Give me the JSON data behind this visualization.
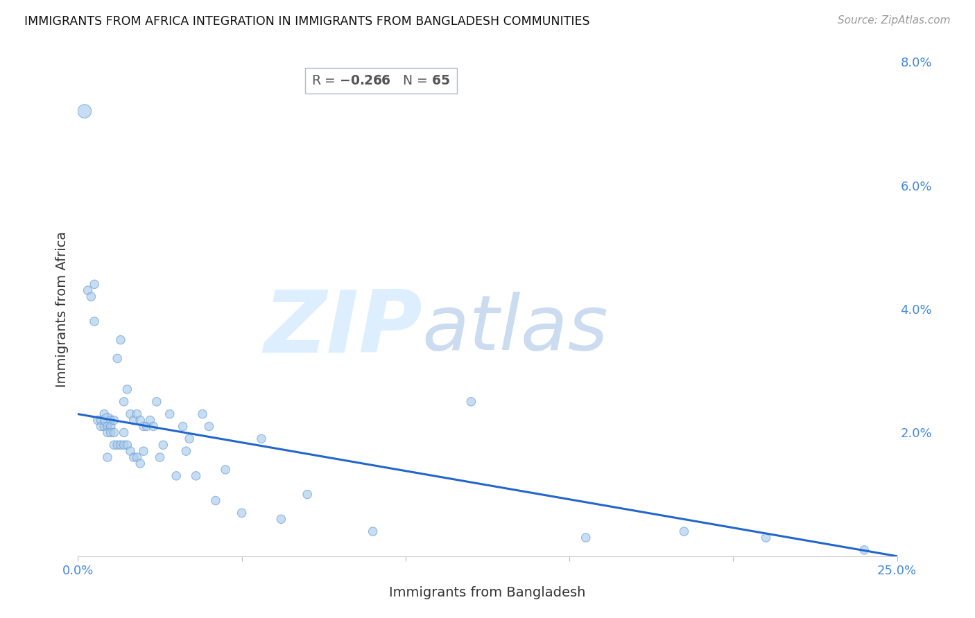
{
  "title": "IMMIGRANTS FROM AFRICA INTEGRATION IN IMMIGRANTS FROM BANGLADESH COMMUNITIES",
  "source": "Source: ZipAtlas.com",
  "xlabel": "Immigrants from Bangladesh",
  "ylabel": "Immigrants from Africa",
  "R": -0.266,
  "N": 65,
  "x_min": 0.0,
  "x_max": 0.25,
  "y_min": 0.0,
  "y_max": 0.08,
  "x_ticks": [
    0.0,
    0.05,
    0.1,
    0.15,
    0.2,
    0.25
  ],
  "x_tick_labels": [
    "0.0%",
    "",
    "",
    "",
    "",
    "25.0%"
  ],
  "y_ticks_right": [
    0.02,
    0.04,
    0.06,
    0.08
  ],
  "y_tick_labels_right": [
    "2.0%",
    "4.0%",
    "6.0%",
    "8.0%"
  ],
  "scatter_color": "#aaccee",
  "scatter_edge_color": "#6699cc",
  "scatter_alpha": 0.65,
  "trend_color": "#2266cc",
  "trend_intercept": 0.023,
  "trend_slope": -0.092,
  "watermark_zip_color": "#ddeeff",
  "watermark_atlas_color": "#cce0f5",
  "title_color": "#111111",
  "source_color": "#999999",
  "axis_label_color": "#333333",
  "tick_label_color": "#4488dd",
  "grid_color": "#cccccc",
  "background_color": "#ffffff",
  "scatter_x": [
    0.002,
    0.003,
    0.004,
    0.005,
    0.005,
    0.006,
    0.007,
    0.007,
    0.008,
    0.008,
    0.009,
    0.009,
    0.009,
    0.009,
    0.01,
    0.01,
    0.01,
    0.011,
    0.011,
    0.011,
    0.012,
    0.012,
    0.013,
    0.013,
    0.014,
    0.014,
    0.014,
    0.015,
    0.015,
    0.016,
    0.016,
    0.017,
    0.017,
    0.018,
    0.018,
    0.019,
    0.019,
    0.02,
    0.02,
    0.021,
    0.022,
    0.023,
    0.024,
    0.025,
    0.026,
    0.028,
    0.03,
    0.032,
    0.033,
    0.034,
    0.036,
    0.038,
    0.04,
    0.042,
    0.045,
    0.05,
    0.056,
    0.062,
    0.07,
    0.09,
    0.12,
    0.155,
    0.185,
    0.21,
    0.24
  ],
  "scatter_y": [
    0.072,
    0.043,
    0.042,
    0.044,
    0.038,
    0.022,
    0.022,
    0.021,
    0.023,
    0.021,
    0.022,
    0.021,
    0.02,
    0.016,
    0.022,
    0.021,
    0.02,
    0.022,
    0.02,
    0.018,
    0.032,
    0.018,
    0.035,
    0.018,
    0.025,
    0.02,
    0.018,
    0.027,
    0.018,
    0.023,
    0.017,
    0.022,
    0.016,
    0.023,
    0.016,
    0.022,
    0.015,
    0.021,
    0.017,
    0.021,
    0.022,
    0.021,
    0.025,
    0.016,
    0.018,
    0.023,
    0.013,
    0.021,
    0.017,
    0.019,
    0.013,
    0.023,
    0.021,
    0.009,
    0.014,
    0.007,
    0.019,
    0.006,
    0.01,
    0.004,
    0.025,
    0.003,
    0.004,
    0.003,
    0.001
  ],
  "scatter_sizes": [
    200,
    80,
    80,
    80,
    80,
    80,
    80,
    80,
    80,
    80,
    200,
    80,
    80,
    80,
    80,
    80,
    80,
    80,
    80,
    80,
    80,
    80,
    80,
    80,
    80,
    80,
    80,
    80,
    80,
    80,
    80,
    80,
    80,
    80,
    80,
    80,
    80,
    80,
    80,
    80,
    80,
    80,
    80,
    80,
    80,
    80,
    80,
    80,
    80,
    80,
    80,
    80,
    80,
    80,
    80,
    80,
    80,
    80,
    80,
    80,
    80,
    80,
    80,
    80,
    80
  ]
}
